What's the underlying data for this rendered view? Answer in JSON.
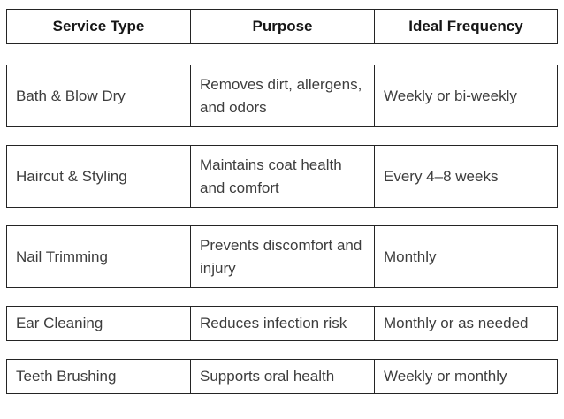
{
  "table": {
    "title_semantic": "pet-grooming-service-schedule",
    "colors": {
      "background": "#ffffff",
      "border": "#242424",
      "header_text": "#161616",
      "body_text": "#3d3d3d"
    },
    "headers": [
      {
        "label": "Service Type"
      },
      {
        "label": "Purpose"
      },
      {
        "label": "Ideal Frequency"
      }
    ],
    "rows": [
      {
        "service": "Bath & Blow Dry",
        "purpose": "Removes dirt, allergens, and odors",
        "frequency": "Weekly or bi-weekly"
      },
      {
        "service": "Haircut & Styling",
        "purpose": "Maintains coat health and comfort",
        "frequency": "Every 4–8 weeks"
      },
      {
        "service": "Nail Trimming",
        "purpose": "Prevents discomfort and injury",
        "frequency": "Monthly"
      },
      {
        "service": "Ear Cleaning",
        "purpose": "Reduces infection risk",
        "frequency": "Monthly or as needed"
      },
      {
        "service": "Teeth Brushing",
        "purpose": "Supports oral health",
        "frequency": "Weekly or monthly"
      }
    ]
  }
}
